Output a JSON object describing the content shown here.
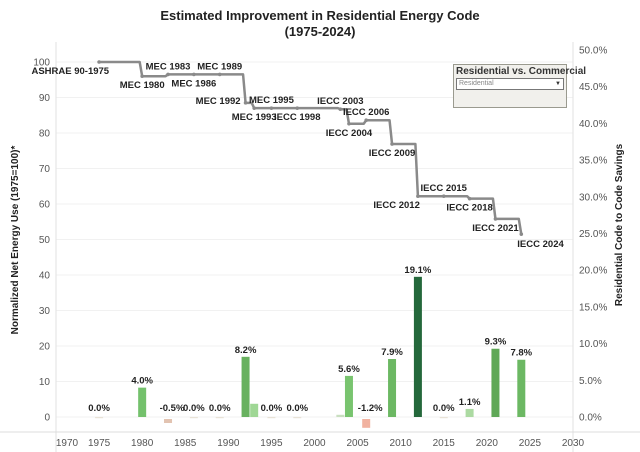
{
  "chart_data": {
    "type": "bar+line",
    "title": "Estimated Improvement in Residential Energy Code",
    "subtitle": "(1975-2024)",
    "xlabel": "",
    "ylabel_left": "Normalized Net Energy Use (1975=100)*",
    "ylabel_right": "Residential Code to Code Savings",
    "x_ticks": [
      1970,
      1975,
      1980,
      1985,
      1990,
      1995,
      2000,
      2005,
      2010,
      2015,
      2020,
      2025,
      2030
    ],
    "xlim": [
      1970,
      2030
    ],
    "ylim_left": [
      0,
      100
    ],
    "y_ticks_left": [
      0,
      10,
      20,
      30,
      40,
      50,
      60,
      70,
      80,
      90,
      100
    ],
    "ylim_right": [
      0,
      50
    ],
    "y_ticks_right": [
      "0.0%",
      "5.0%",
      "10.0%",
      "15.0%",
      "20.0%",
      "25.0%",
      "30.0%",
      "35.0%",
      "40.0%",
      "45.0%",
      "50.0%"
    ],
    "grid": true,
    "line_series": {
      "name": "Normalized Net Energy Use",
      "color": "#8a8a8a",
      "points": [
        {
          "year": 1975,
          "value": 100,
          "label": "ASHRAE 90-1975",
          "label_pos": "below-left"
        },
        {
          "year": 1980,
          "value": 96,
          "label": "MEC 1980",
          "label_pos": "below"
        },
        {
          "year": 1983,
          "value": 96.5,
          "label": "MEC 1983",
          "label_pos": "above"
        },
        {
          "year": 1986,
          "value": 96.5,
          "label": "MEC 1986",
          "label_pos": "below"
        },
        {
          "year": 1989,
          "value": 96.5,
          "label": "MEC 1989",
          "label_pos": "above"
        },
        {
          "year": 1992,
          "value": 88.5,
          "label": "MEC 1992",
          "label_pos": "left"
        },
        {
          "year": 1993,
          "value": 87,
          "label": "MEC 1993",
          "label_pos": "below"
        },
        {
          "year": 1995,
          "value": 87,
          "label": "MEC 1995",
          "label_pos": "above"
        },
        {
          "year": 1998,
          "value": 87,
          "label": "IECC 1998",
          "label_pos": "below"
        },
        {
          "year": 2003,
          "value": 86.7,
          "label": "IECC 2003",
          "label_pos": "above"
        },
        {
          "year": 2004,
          "value": 82.6,
          "label": "IECC 2004",
          "label_pos": "below"
        },
        {
          "year": 2006,
          "value": 83.6,
          "label": "IECC 2006",
          "label_pos": "above"
        },
        {
          "year": 2009,
          "value": 76.9,
          "label": "IECC 2009",
          "label_pos": "below"
        },
        {
          "year": 2012,
          "value": 62.2,
          "label": "IECC 2012",
          "label_pos": "below-left"
        },
        {
          "year": 2015,
          "value": 62.2,
          "label": "IECC 2015",
          "label_pos": "above"
        },
        {
          "year": 2018,
          "value": 61.5,
          "label": "IECC 2018",
          "label_pos": "below"
        },
        {
          "year": 2021,
          "value": 55.8,
          "label": "IECC 2021",
          "label_pos": "below"
        },
        {
          "year": 2024,
          "value": 51.5,
          "label": "IECC 2024",
          "label_pos": "below-right"
        }
      ]
    },
    "bar_series": {
      "name": "Residential Code to Code Savings (%)",
      "bars": [
        {
          "year": 1975,
          "value": 0.0,
          "label": "0.0%",
          "color": "#e8e2d6"
        },
        {
          "year": 1980,
          "value": 4.0,
          "label": "4.0%",
          "color": "#74c16c"
        },
        {
          "year": 1983,
          "value": -0.5,
          "label": "-0.5%",
          "color": "#e2c3b1"
        },
        {
          "year": 1986,
          "value": 0.0,
          "label": "0.0%",
          "color": "#e8e2d6"
        },
        {
          "year": 1989,
          "value": 0.0,
          "label": "0.0%",
          "color": "#e8e2d6"
        },
        {
          "year": 1992,
          "value": 8.2,
          "label": "8.2%",
          "color": "#68b15f"
        },
        {
          "year": 1993,
          "value": 1.8,
          "label": "",
          "color": "#9fd795"
        },
        {
          "year": 1995,
          "value": 0.0,
          "label": "0.0%",
          "color": "#e8e2d6"
        },
        {
          "year": 1998,
          "value": 0.0,
          "label": "0.0%",
          "color": "#e8e2d6"
        },
        {
          "year": 2003,
          "value": 0.3,
          "label": "",
          "color": "#c9dfc0"
        },
        {
          "year": 2004,
          "value": 5.6,
          "label": "5.6%",
          "color": "#79c46f"
        },
        {
          "year": 2006,
          "value": -1.2,
          "label": "-1.2%",
          "color": "#f1b2a0"
        },
        {
          "year": 2009,
          "value": 7.9,
          "label": "7.9%",
          "color": "#6cb863"
        },
        {
          "year": 2012,
          "value": 19.1,
          "label": "19.1%",
          "color": "#24683b"
        },
        {
          "year": 2015,
          "value": 0.0,
          "label": "0.0%",
          "color": "#e8e2d6"
        },
        {
          "year": 2018,
          "value": 1.1,
          "label": "1.1%",
          "color": "#acdaa2"
        },
        {
          "year": 2021,
          "value": 9.3,
          "label": "9.3%",
          "color": "#5fa857"
        },
        {
          "year": 2024,
          "value": 7.8,
          "label": "7.8%",
          "color": "#6cb863"
        }
      ]
    }
  },
  "filter": {
    "title": "Residential vs. Commercial",
    "selected": "Residential"
  }
}
